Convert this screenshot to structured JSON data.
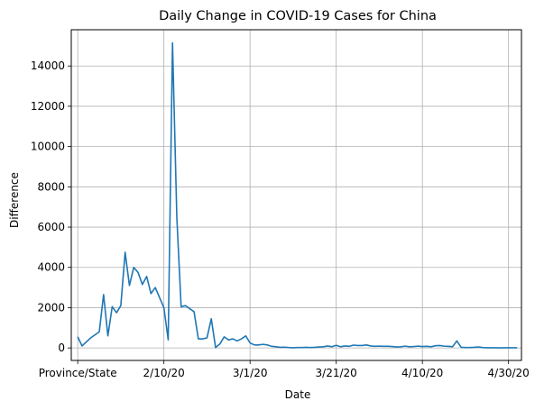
{
  "chart_data": {
    "type": "line",
    "title": "Daily Change in COVID-19 Cases for China",
    "xlabel": "Date",
    "ylabel": "Difference",
    "grid": true,
    "line_color": "#1f77b4",
    "x_ticks": [
      {
        "label": "Province/State",
        "index": 0
      },
      {
        "label": "2/10/20",
        "index": 20
      },
      {
        "label": "3/1/20",
        "index": 40
      },
      {
        "label": "3/21/20",
        "index": 60
      },
      {
        "label": "4/10/20",
        "index": 80
      },
      {
        "label": "4/30/20",
        "index": 100
      }
    ],
    "y_ticks": [
      0,
      2000,
      4000,
      6000,
      8000,
      10000,
      12000,
      14000
    ],
    "ylim": [
      -620,
      15800
    ],
    "xlim": [
      -1.5,
      103
    ],
    "series": [
      {
        "values": [
          550,
          100,
          300,
          500,
          650,
          800,
          2650,
          600,
          2050,
          1750,
          2100,
          4750,
          3100,
          4000,
          3750,
          3150,
          3550,
          2700,
          3000,
          2500,
          2000,
          400,
          15150,
          6500,
          2050,
          2100,
          1950,
          1800,
          450,
          450,
          500,
          1450,
          20,
          200,
          550,
          400,
          450,
          350,
          450,
          600,
          250,
          150,
          150,
          180,
          150,
          80,
          60,
          30,
          40,
          20,
          10,
          20,
          20,
          30,
          20,
          30,
          50,
          60,
          100,
          60,
          130,
          60,
          100,
          80,
          140,
          120,
          120,
          150,
          100,
          80,
          90,
          80,
          80,
          70,
          50,
          60,
          90,
          60,
          70,
          90,
          70,
          80,
          60,
          110,
          120,
          90,
          80,
          60,
          350,
          30,
          20,
          20,
          30,
          50,
          20,
          10,
          10,
          10,
          5,
          10,
          10,
          10,
          10
        ]
      }
    ]
  }
}
